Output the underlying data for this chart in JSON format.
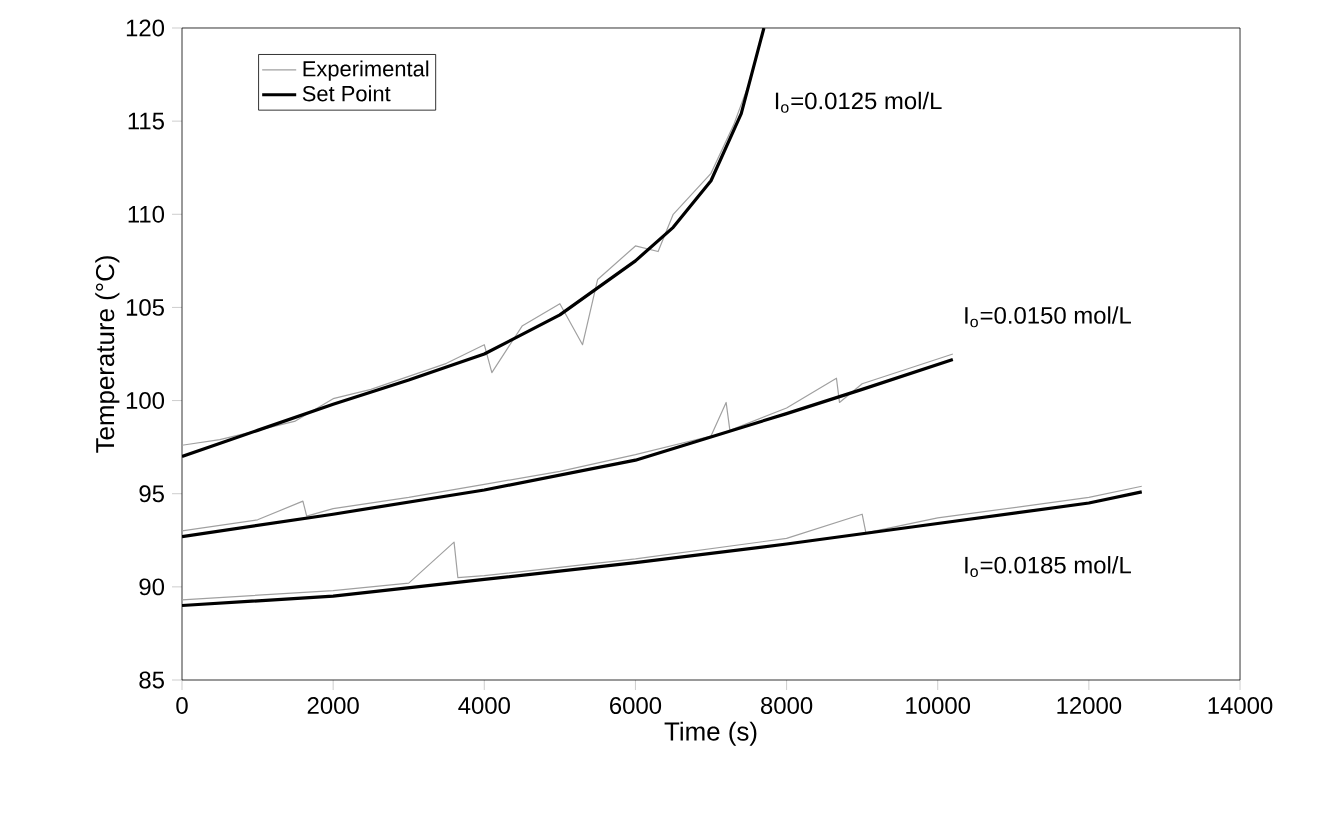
{
  "chart_data": {
    "type": "line",
    "xlabel": "Time (s)",
    "ylabel": "Temperature (°C)",
    "xlim": [
      0,
      14000
    ],
    "ylim": [
      85,
      120
    ],
    "xticks": [
      0,
      2000,
      4000,
      6000,
      8000,
      10000,
      12000,
      14000
    ],
    "yticks": [
      85,
      90,
      95,
      100,
      105,
      110,
      115,
      120
    ],
    "legend": "top left",
    "grid": false,
    "marker": "none",
    "line_style": "solid",
    "series": [
      {
        "name": "Experimental",
        "color": "#a0a0a0",
        "x": [
          0,
          500,
          1000,
          1500,
          2000,
          2500,
          3000,
          3500,
          4000,
          4100,
          4500,
          5000,
          5300,
          5500,
          6000,
          6300,
          6500,
          7000,
          7300,
          7500
        ],
        "values": [
          97.6,
          97.9,
          98.4,
          98.9,
          100.1,
          100.6,
          101.3,
          102.0,
          103.0,
          101.5,
          104.0,
          105.2,
          103.0,
          106.5,
          108.3,
          108.0,
          110.0,
          112.2,
          114.8,
          117.0
        ]
      },
      {
        "color": "#a0a0a0",
        "x": [
          0,
          1000,
          1600,
          1650,
          2000,
          3000,
          4000,
          5000,
          6000,
          7000,
          7200,
          7250,
          8000,
          8660,
          8700,
          9000,
          10200
        ],
        "values": [
          93.0,
          93.6,
          94.6,
          93.8,
          94.2,
          94.8,
          95.5,
          96.2,
          97.1,
          98.1,
          99.9,
          98.4,
          99.6,
          101.2,
          99.9,
          100.9,
          102.5
        ]
      },
      {
        "color": "#a0a0a0",
        "x": [
          0,
          2000,
          3000,
          3600,
          3650,
          4000,
          6000,
          8000,
          9000,
          9050,
          10000,
          12000,
          12700
        ],
        "values": [
          89.3,
          89.8,
          90.2,
          92.4,
          90.5,
          90.6,
          91.5,
          92.6,
          93.9,
          92.9,
          93.7,
          94.8,
          95.4
        ]
      },
      {
        "name": "Set Point",
        "color": "#000000",
        "x": [
          0,
          1000,
          2000,
          3000,
          4000,
          5000,
          6000,
          6500,
          7000,
          7400,
          7700
        ],
        "values": [
          97.0,
          98.4,
          99.8,
          101.1,
          102.5,
          104.6,
          107.5,
          109.3,
          111.8,
          115.4,
          120.0
        ]
      },
      {
        "color": "#000000",
        "x": [
          0,
          2000,
          4000,
          6000,
          8000,
          9000,
          10200
        ],
        "values": [
          92.7,
          93.9,
          95.2,
          96.8,
          99.3,
          100.6,
          102.2
        ]
      },
      {
        "color": "#000000",
        "x": [
          0,
          2000,
          4000,
          6000,
          8000,
          10000,
          12000,
          12700
        ],
        "values": [
          89.0,
          89.5,
          90.4,
          91.3,
          92.3,
          93.4,
          94.5,
          95.1
        ]
      }
    ],
    "annotations": [
      "I$_{o}$=0.0125 mol/L",
      "I$_{o}$=0.0150 mol/L",
      "I$_{o}$=0.0185 mol/L"
    ]
  }
}
